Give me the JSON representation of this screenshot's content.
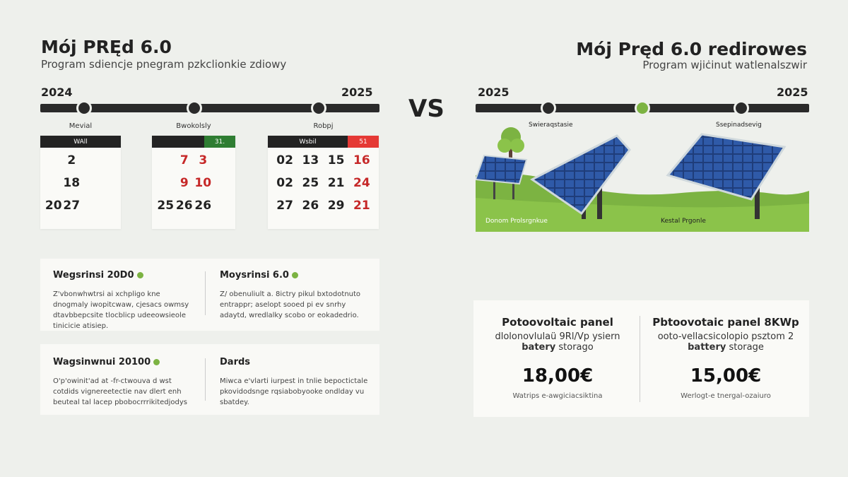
{
  "left": {
    "title": "Mój PRĘd 6.0",
    "subtitle": "Program sdiencje pnegram pzkclionkie zdiowy",
    "year_start": "2024",
    "year_end": "2025",
    "calendars": [
      {
        "label": "Mevial",
        "header": "WAll",
        "badge": "",
        "badge_color": "",
        "rows": [
          [
            "",
            "2",
            "",
            ""
          ],
          [
            "",
            "18",
            "",
            ""
          ],
          [
            "20",
            "27",
            "",
            ""
          ]
        ]
      },
      {
        "label": "Bwokolsly",
        "header": "",
        "badge": "31.",
        "badge_color": "#2e7d32",
        "rows": [
          [
            "",
            "7",
            "3",
            ""
          ],
          [
            "",
            "9",
            "10",
            ""
          ],
          [
            "25",
            "26",
            "26",
            ""
          ]
        ]
      },
      {
        "label": "Robpj",
        "header": "Wsbil",
        "badge": "51",
        "badge_color": "#e53935",
        "rows": [
          [
            "02",
            "13",
            "15",
            "16"
          ],
          [
            "02",
            "25",
            "21",
            "24"
          ],
          [
            "27",
            "26",
            "29",
            "21"
          ]
        ]
      }
    ],
    "cards": [
      {
        "a_title": "Wegsrinsi 20D0",
        "a_text": "Z'vbonwhwtrsi ai xchpligo kne dnogmaly iwopitcwaw, cjesacs owmsy dtavbbepcsite tlocblicp udeeowsieole tinicicie atisiep.",
        "b_title": "Moysrinsi 6.0",
        "b_text": "Z/ obenuliult a. 8ictry pikul bxtodotnuto entrappr; aselopt sooed pi ev snrhy adaytd, wredlalky scobo or eokadedrio."
      },
      {
        "a_title": "Wagsinwnui 20100",
        "a_text": "O'p'owinit'ad at -fr-ctwouva d wst cotdids vignereetectie nav dlert enh beuteal tal lacep pbobocrrrikitedjodys",
        "b_title": "Dards",
        "b_text": "Miwca e'vlarti iurpest in tnlie bepoctictale pkovidodsnge rqsiabobyooke ondlday vu sbatdey."
      }
    ]
  },
  "vs_label": "VS",
  "right": {
    "title": "Mój Pręd 6.0 redirowes",
    "subtitle": "Program wjiċinut watlenalszwir",
    "year_start": "2025",
    "year_end": "2025",
    "scene_labels": [
      "Swieraqstasie",
      "Ssepinadsevig"
    ],
    "ground_labels": [
      "Donom Prolsrgnkue",
      "Kestal Prgonle"
    ],
    "offers": [
      {
        "title": "Potoovoltaic panel",
        "line1": "dlolonovlulaü 9Rl/Vp ysiern",
        "line2_bold": "batery",
        "line2": "storago",
        "price": "18,00€",
        "note": "Watrips e-awgiciacsiktina"
      },
      {
        "title": "Pbtoovotaic panel 8KWp",
        "line1": "ooto-vellacsicolopio psztom 2",
        "line2_bold": "battery",
        "line2": "storage",
        "price": "15,00€",
        "note": "Werlogt-e tnergal-ozaiuro"
      }
    ]
  },
  "colors": {
    "background": "#eef0ec",
    "dark": "#2a2a2a",
    "accent_green": "#7cb342",
    "accent_red": "#e53935",
    "grass": "#7cb342"
  }
}
